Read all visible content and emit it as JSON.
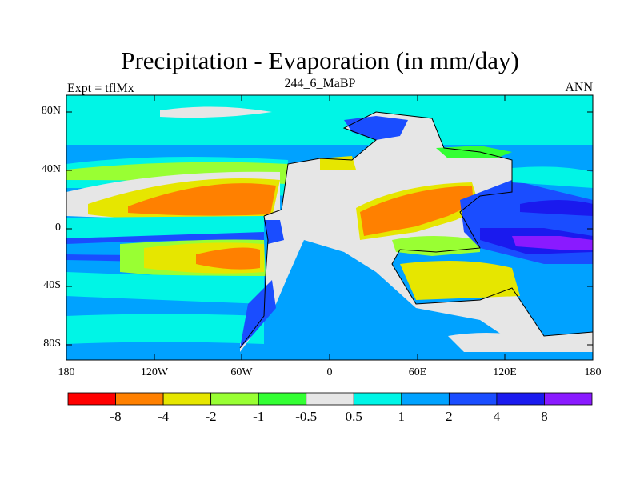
{
  "title": "Precipitation - Evaporation (in mm/day)",
  "subtitle": "244_6_MaBP",
  "left_label": "Expt = tflMx",
  "right_label": "ANN",
  "lat_ticks": [
    "80N",
    "40N",
    "0",
    "40S",
    "80S"
  ],
  "lon_ticks": [
    "180",
    "120W",
    "60W",
    "0",
    "60E",
    "120E",
    "180"
  ],
  "colorbar": {
    "colors": [
      "#ff0000",
      "#ff8000",
      "#e6e600",
      "#99ff33",
      "#33ff33",
      "#e6e6e6",
      "#00f5e6",
      "#00a2ff",
      "#1a4dff",
      "#1a1aee",
      "#8a1aff"
    ],
    "labels": [
      "-8",
      "-4",
      "-2",
      "-1",
      "-0.5",
      "0.5",
      "1",
      "2",
      "4",
      "8"
    ]
  }
}
